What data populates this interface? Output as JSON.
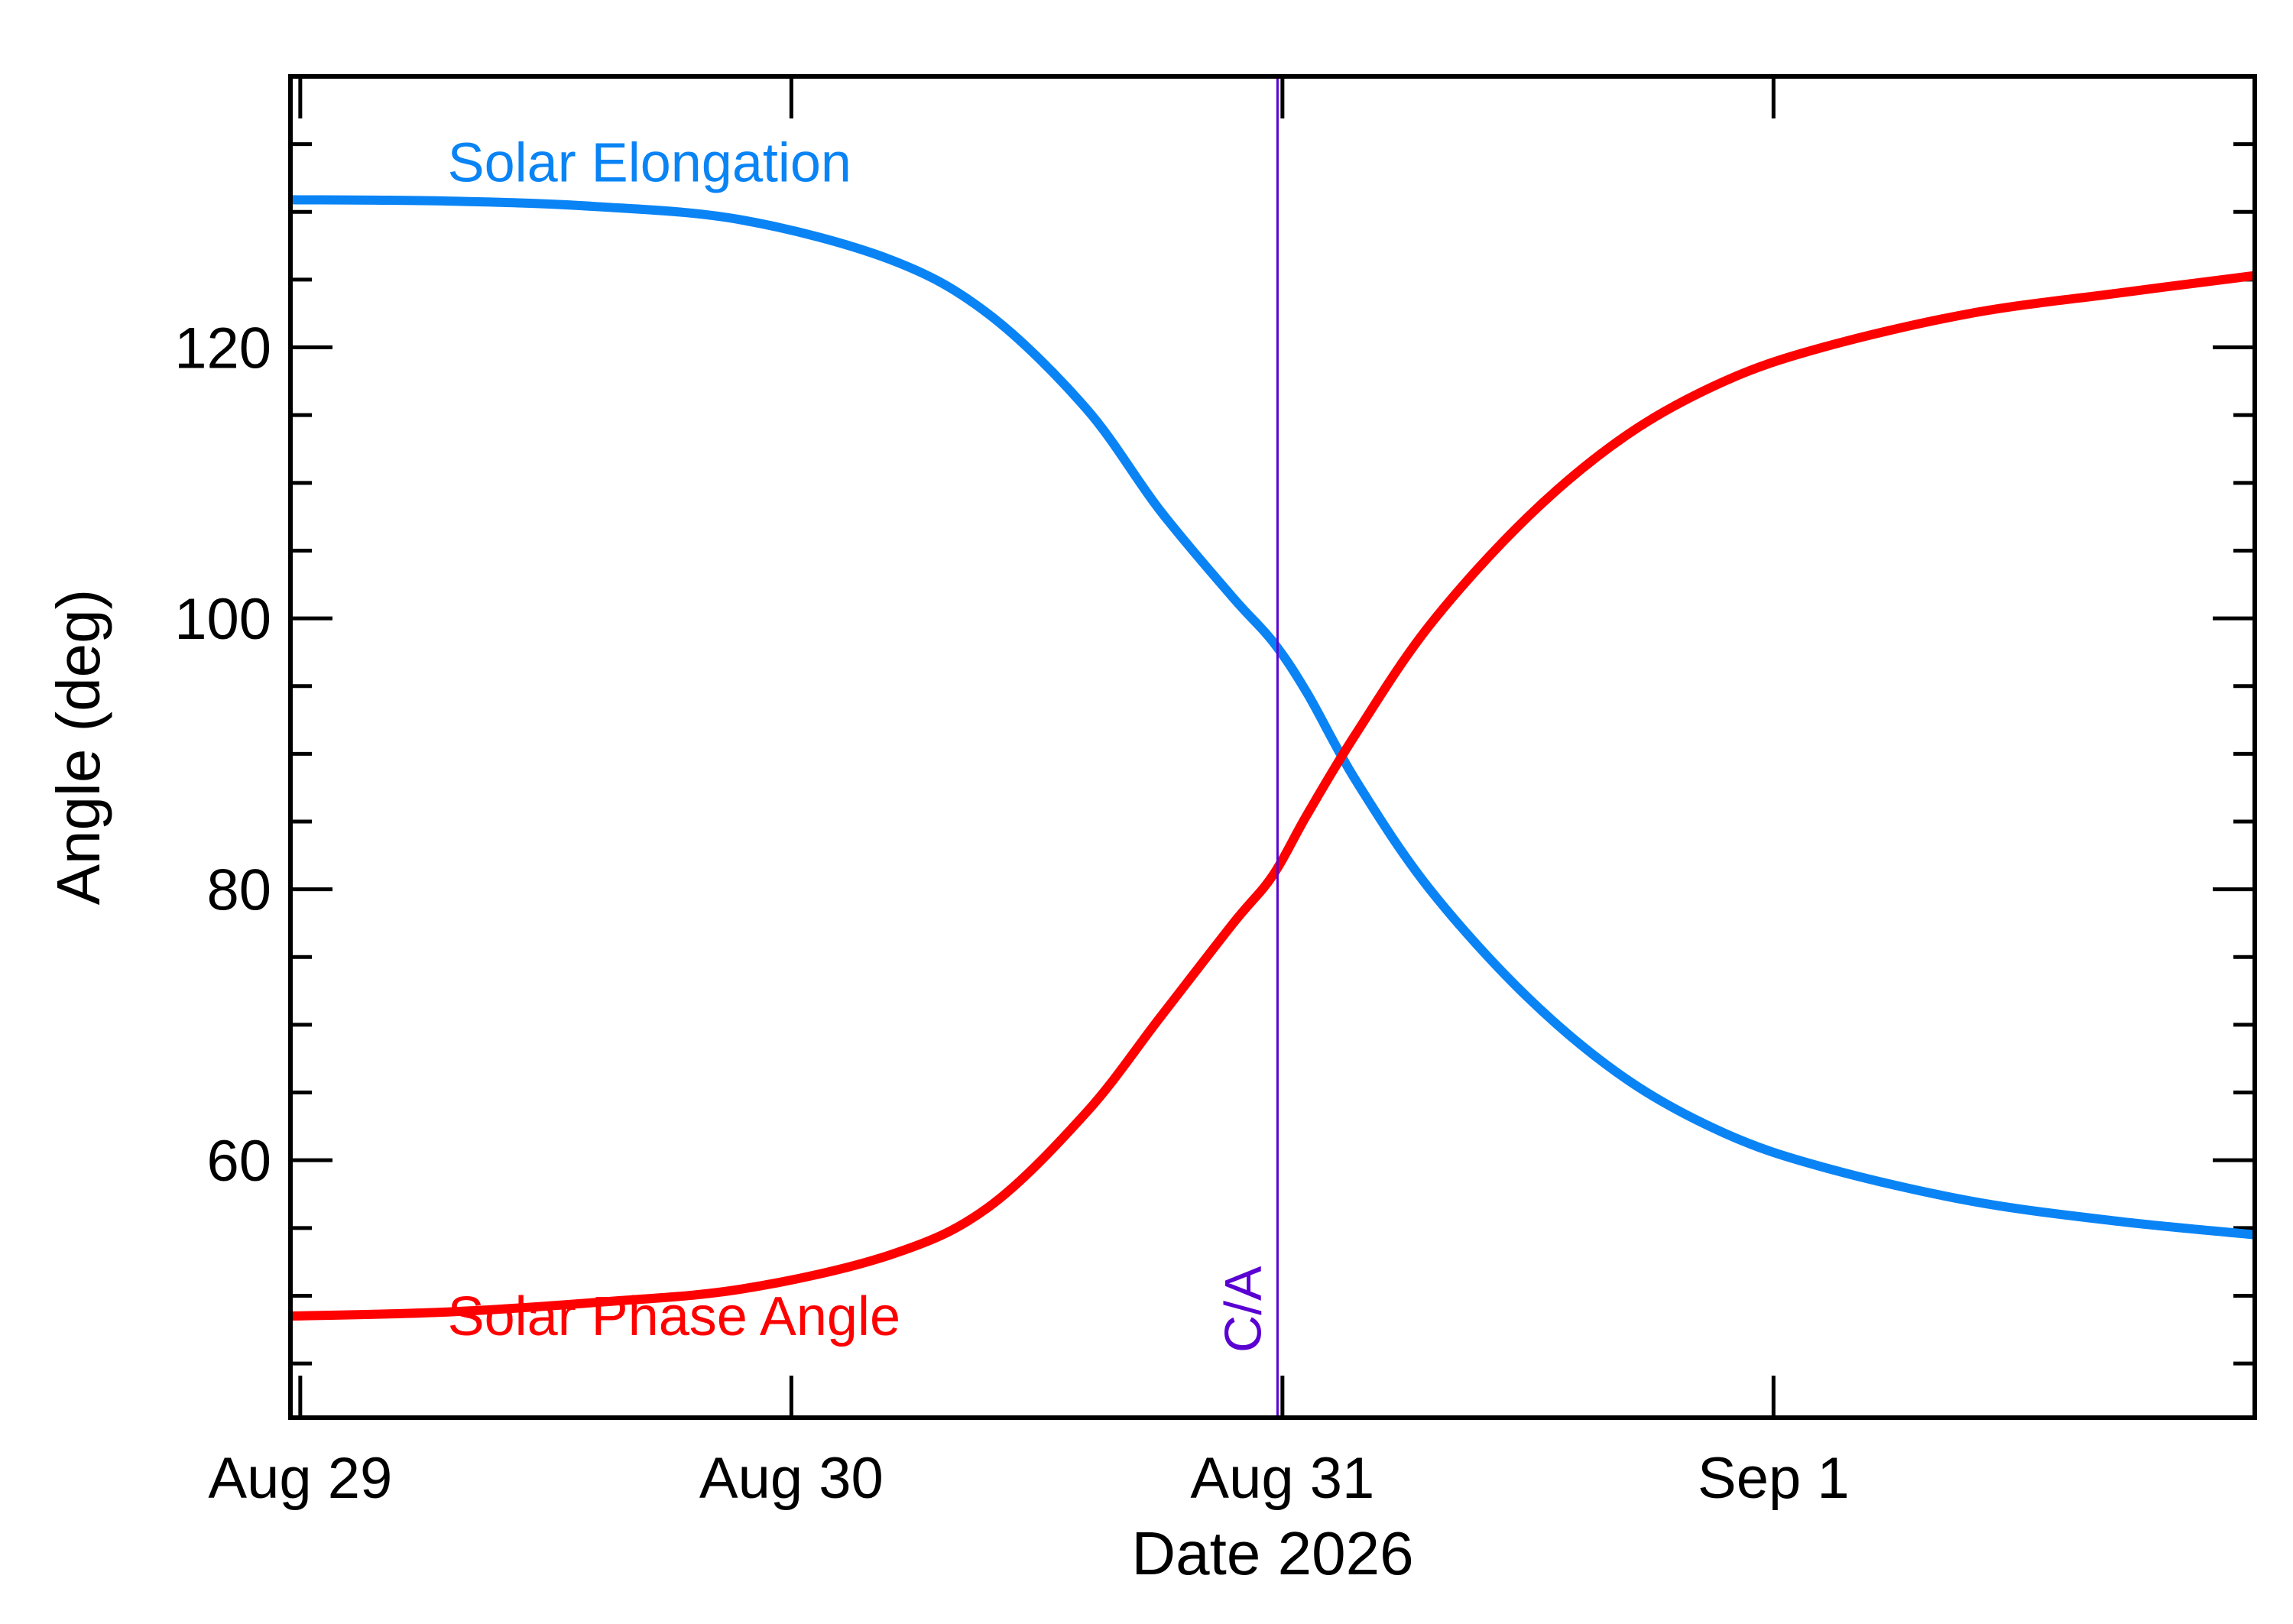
{
  "chart_data": {
    "type": "line",
    "xlabel": "Date 2026",
    "ylabel": "Angle (deg)",
    "x_ticks": [
      {
        "label": "Aug 29",
        "x": 0
      },
      {
        "label": "Aug 30",
        "x": 1
      },
      {
        "label": "Aug 31",
        "x": 2
      },
      {
        "label": "Sep  1",
        "x": 3
      }
    ],
    "x_unit": "days from Aug 29 2026 00:00",
    "xlim": [
      -0.02,
      3.98
    ],
    "y_ticks": [
      60,
      80,
      100,
      120
    ],
    "y_minor_step": 5,
    "ylim": [
      41,
      140
    ],
    "grid": false,
    "series": [
      {
        "name": "Solar Elongation",
        "color": "#0a84f5",
        "x": [
          -0.02,
          0.3,
          0.6,
          0.9,
          1.2,
          1.4,
          1.6,
          1.75,
          1.9,
          1.98,
          2.05,
          2.15,
          2.3,
          2.5,
          2.7,
          2.9,
          3.1,
          3.4,
          3.7,
          3.98
        ],
        "y": [
          130.9,
          130.8,
          130.4,
          129.4,
          126.5,
          122.5,
          115.5,
          108.0,
          101.5,
          98.3,
          94.5,
          88.0,
          80.0,
          72.0,
          66.0,
          62.0,
          59.5,
          57.0,
          55.5,
          54.5
        ]
      },
      {
        "name": "Solar Phase Angle",
        "color": "#ff0000",
        "x": [
          -0.02,
          0.3,
          0.6,
          0.9,
          1.2,
          1.4,
          1.6,
          1.75,
          1.9,
          1.98,
          2.05,
          2.15,
          2.3,
          2.5,
          2.7,
          2.9,
          3.1,
          3.4,
          3.7,
          3.98
        ],
        "y": [
          48.5,
          48.8,
          49.5,
          50.5,
          53.0,
          56.5,
          63.5,
          70.5,
          77.5,
          81.0,
          85.5,
          91.5,
          99.5,
          107.5,
          113.5,
          117.5,
          120.0,
          122.5,
          124.0,
          125.3
        ]
      }
    ],
    "annotations": [
      {
        "text": "Solar Elongation",
        "color": "#0a84f5",
        "x": 0.3,
        "y": 131
      },
      {
        "text": "Solar Phase Angle",
        "color": "#ff0000",
        "x": 0.3,
        "y": 48.5
      }
    ],
    "vline": {
      "label": "C/A",
      "x": 1.99,
      "color": "#5a00d2"
    }
  }
}
